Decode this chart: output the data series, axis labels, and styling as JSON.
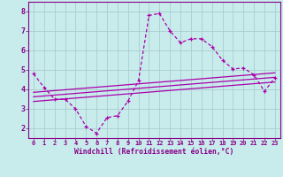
{
  "x": [
    0,
    1,
    2,
    3,
    4,
    5,
    6,
    7,
    8,
    9,
    10,
    11,
    12,
    13,
    14,
    15,
    16,
    17,
    18,
    19,
    20,
    21,
    22,
    23
  ],
  "main_line": [
    4.8,
    4.1,
    3.5,
    3.5,
    3.0,
    2.1,
    1.75,
    2.55,
    2.65,
    3.4,
    4.45,
    7.8,
    7.9,
    7.0,
    6.4,
    6.6,
    6.6,
    6.2,
    5.5,
    5.05,
    5.1,
    4.75,
    3.9,
    4.6
  ],
  "reg_line1": [
    3.85,
    4.85
  ],
  "reg_line2": [
    3.62,
    4.62
  ],
  "reg_line3": [
    3.38,
    4.38
  ],
  "line_color": "#aa00aa",
  "bg_color": "#c8ecec",
  "grid_color": "#aacccc",
  "xlabel": "Windchill (Refroidissement éolien,°C)",
  "ylabel_ticks": [
    2,
    3,
    4,
    5,
    6,
    7,
    8
  ],
  "xlim": [
    -0.5,
    23.5
  ],
  "ylim": [
    1.5,
    8.5
  ],
  "xticks": [
    0,
    1,
    2,
    3,
    4,
    5,
    6,
    7,
    8,
    9,
    10,
    11,
    12,
    13,
    14,
    15,
    16,
    17,
    18,
    19,
    20,
    21,
    22,
    23
  ],
  "tick_color": "#880088",
  "label_color": "#880088"
}
